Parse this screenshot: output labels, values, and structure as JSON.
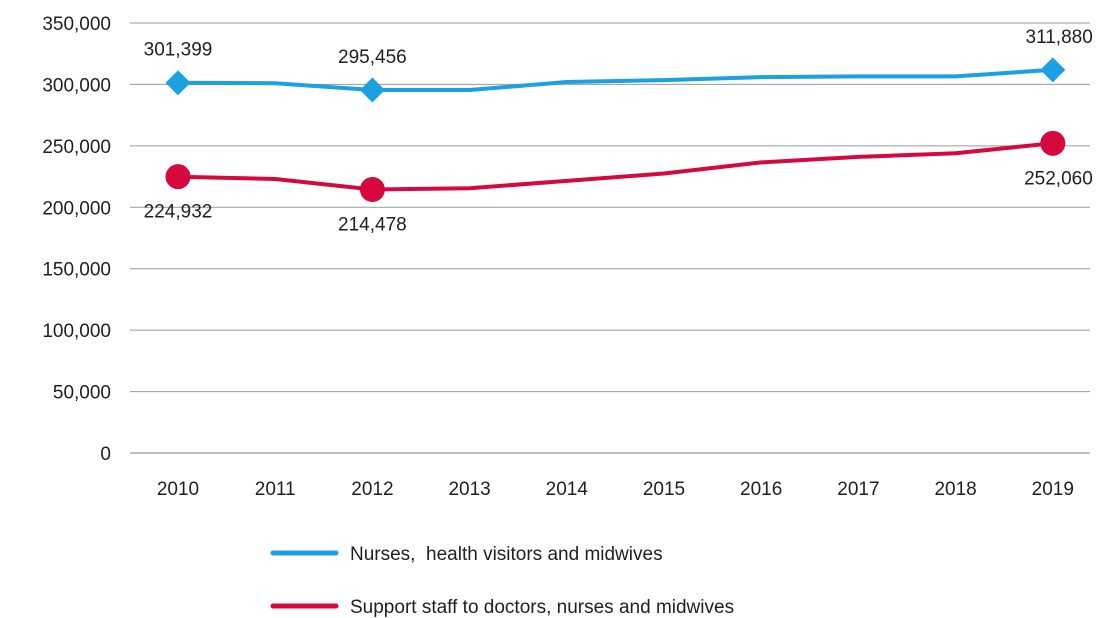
{
  "chart_data": {
    "type": "line",
    "categories": [
      "2010",
      "2011",
      "2012",
      "2013",
      "2014",
      "2015",
      "2016",
      "2017",
      "2018",
      "2019"
    ],
    "ylim": [
      0,
      350000
    ],
    "yticks": [
      "0",
      "50,000",
      "100,000",
      "150,000",
      "200,000",
      "250,000",
      "300,000",
      "350,000"
    ],
    "ytick_values": [
      0,
      50000,
      100000,
      150000,
      200000,
      250000,
      300000,
      350000
    ],
    "grid": true,
    "legend_position": "bottom",
    "series": [
      {
        "name": "Nurses,  health visitors and midwives",
        "color": "#1ba1e2",
        "marker": "diamond",
        "values": [
          301399,
          301000,
          295456,
          295500,
          302000,
          303500,
          306000,
          306500,
          306500,
          311880
        ],
        "labels": [
          {
            "index": 0,
            "text": "301,399"
          },
          {
            "index": 2,
            "text": "295,456"
          },
          {
            "index": 9,
            "text": "311,880"
          }
        ]
      },
      {
        "name": "Support staff to doctors, nurses and midwives",
        "color": "#d6093f",
        "marker": "circle",
        "values": [
          224932,
          223000,
          214478,
          215500,
          221500,
          227500,
          236500,
          241000,
          244000,
          252060
        ],
        "labels": [
          {
            "index": 0,
            "text": "224,932"
          },
          {
            "index": 2,
            "text": "214,478"
          },
          {
            "index": 9,
            "text": "252,060"
          }
        ]
      }
    ]
  }
}
